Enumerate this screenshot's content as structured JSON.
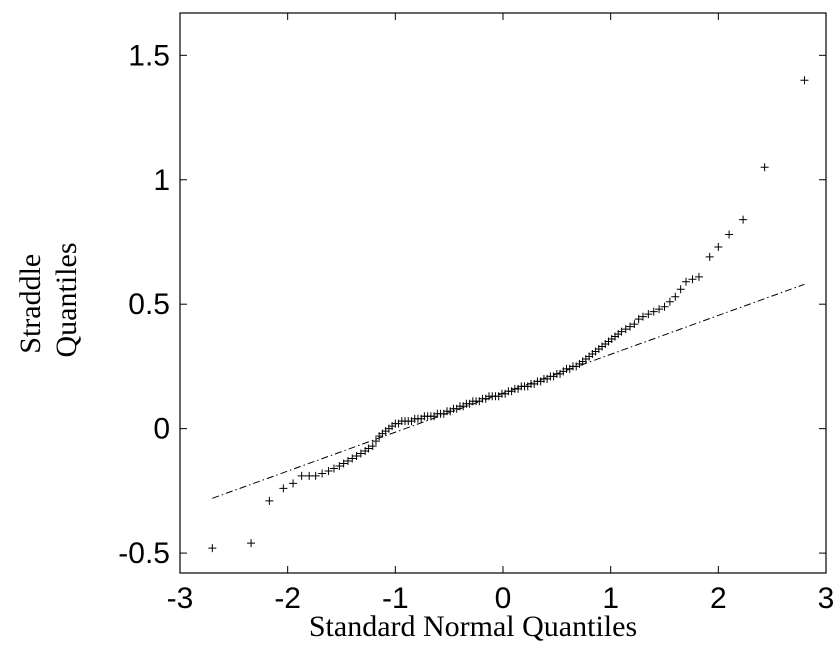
{
  "chart_data": {
    "type": "scatter",
    "xlabel": "Standard Normal Quantiles",
    "ylabel_lines": [
      "Straddle",
      "Quantiles"
    ],
    "xlim": [
      -3,
      3
    ],
    "ylim": [
      -0.58,
      1.67
    ],
    "xticks": [
      -3,
      -2,
      -1,
      0,
      1,
      2,
      3
    ],
    "xtick_labels": [
      "-3",
      "-2",
      "-1",
      "0",
      "1",
      "2",
      "3"
    ],
    "yticks": [
      -0.5,
      0,
      0.5,
      1,
      1.5
    ],
    "ytick_labels": [
      "-0.5",
      "0",
      "0.5",
      "1",
      "1.5"
    ],
    "grid": false,
    "legend": "none",
    "marker": "plus",
    "marker_color": "#000000",
    "reference_line": {
      "style": "dash-dot",
      "color": "#000000",
      "x": [
        -2.7,
        2.8
      ],
      "y": [
        -0.28,
        0.58
      ]
    },
    "points": [
      [
        -2.7,
        -0.48
      ],
      [
        -2.34,
        -0.46
      ],
      [
        -2.17,
        -0.29
      ],
      [
        -2.04,
        -0.24
      ],
      [
        -1.95,
        -0.22
      ],
      [
        -1.87,
        -0.19
      ],
      [
        -1.8,
        -0.19
      ],
      [
        -1.74,
        -0.19
      ],
      [
        -1.68,
        -0.18
      ],
      [
        -1.62,
        -0.17
      ],
      [
        -1.57,
        -0.16
      ],
      [
        -1.52,
        -0.15
      ],
      [
        -1.48,
        -0.14
      ],
      [
        -1.44,
        -0.13
      ],
      [
        -1.4,
        -0.12
      ],
      [
        -1.36,
        -0.11
      ],
      [
        -1.32,
        -0.1
      ],
      [
        -1.28,
        -0.09
      ],
      [
        -1.25,
        -0.08
      ],
      [
        -1.21,
        -0.07
      ],
      [
        -1.18,
        -0.05
      ],
      [
        -1.15,
        -0.03
      ],
      [
        -1.12,
        -0.02
      ],
      [
        -1.09,
        -0.01
      ],
      [
        -1.06,
        0.0
      ],
      [
        -1.03,
        0.01
      ],
      [
        -1.0,
        0.02
      ],
      [
        -0.97,
        0.02
      ],
      [
        -0.94,
        0.03
      ],
      [
        -0.91,
        0.03
      ],
      [
        -0.88,
        0.03
      ],
      [
        -0.85,
        0.03
      ],
      [
        -0.82,
        0.04
      ],
      [
        -0.79,
        0.04
      ],
      [
        -0.76,
        0.04
      ],
      [
        -0.73,
        0.05
      ],
      [
        -0.7,
        0.05
      ],
      [
        -0.67,
        0.05
      ],
      [
        -0.64,
        0.05
      ],
      [
        -0.61,
        0.06
      ],
      [
        -0.58,
        0.06
      ],
      [
        -0.55,
        0.06
      ],
      [
        -0.52,
        0.07
      ],
      [
        -0.49,
        0.07
      ],
      [
        -0.46,
        0.08
      ],
      [
        -0.43,
        0.08
      ],
      [
        -0.4,
        0.09
      ],
      [
        -0.37,
        0.09
      ],
      [
        -0.34,
        0.1
      ],
      [
        -0.31,
        0.1
      ],
      [
        -0.28,
        0.11
      ],
      [
        -0.25,
        0.11
      ],
      [
        -0.22,
        0.11
      ],
      [
        -0.19,
        0.12
      ],
      [
        -0.16,
        0.12
      ],
      [
        -0.13,
        0.13
      ],
      [
        -0.1,
        0.13
      ],
      [
        -0.07,
        0.13
      ],
      [
        -0.04,
        0.13
      ],
      [
        -0.01,
        0.14
      ],
      [
        0.02,
        0.14
      ],
      [
        0.05,
        0.15
      ],
      [
        0.08,
        0.15
      ],
      [
        0.11,
        0.16
      ],
      [
        0.14,
        0.16
      ],
      [
        0.17,
        0.17
      ],
      [
        0.2,
        0.17
      ],
      [
        0.23,
        0.17
      ],
      [
        0.26,
        0.18
      ],
      [
        0.29,
        0.18
      ],
      [
        0.32,
        0.19
      ],
      [
        0.35,
        0.19
      ],
      [
        0.38,
        0.2
      ],
      [
        0.41,
        0.2
      ],
      [
        0.44,
        0.21
      ],
      [
        0.47,
        0.21
      ],
      [
        0.5,
        0.22
      ],
      [
        0.53,
        0.22
      ],
      [
        0.56,
        0.23
      ],
      [
        0.59,
        0.24
      ],
      [
        0.62,
        0.24
      ],
      [
        0.65,
        0.25
      ],
      [
        0.68,
        0.25
      ],
      [
        0.71,
        0.26
      ],
      [
        0.74,
        0.27
      ],
      [
        0.77,
        0.28
      ],
      [
        0.8,
        0.29
      ],
      [
        0.83,
        0.3
      ],
      [
        0.86,
        0.31
      ],
      [
        0.89,
        0.32
      ],
      [
        0.92,
        0.33
      ],
      [
        0.95,
        0.34
      ],
      [
        0.98,
        0.35
      ],
      [
        1.01,
        0.36
      ],
      [
        1.04,
        0.37
      ],
      [
        1.07,
        0.38
      ],
      [
        1.1,
        0.39
      ],
      [
        1.14,
        0.4
      ],
      [
        1.18,
        0.41
      ],
      [
        1.22,
        0.42
      ],
      [
        1.26,
        0.44
      ],
      [
        1.3,
        0.45
      ],
      [
        1.35,
        0.46
      ],
      [
        1.4,
        0.47
      ],
      [
        1.45,
        0.48
      ],
      [
        1.5,
        0.49
      ],
      [
        1.55,
        0.51
      ],
      [
        1.6,
        0.53
      ],
      [
        1.65,
        0.56
      ],
      [
        1.7,
        0.59
      ],
      [
        1.76,
        0.6
      ],
      [
        1.82,
        0.61
      ],
      [
        1.92,
        0.69
      ],
      [
        2.0,
        0.73
      ],
      [
        2.1,
        0.78
      ],
      [
        2.23,
        0.84
      ],
      [
        2.43,
        1.05
      ],
      [
        2.8,
        1.4
      ]
    ]
  }
}
